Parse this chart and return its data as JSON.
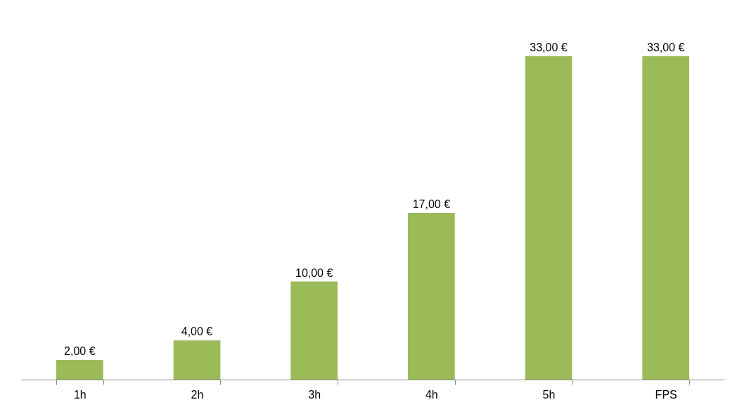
{
  "chart_data": {
    "type": "bar",
    "categories": [
      "1h",
      "2h",
      "3h",
      "4h",
      "5h",
      "FPS"
    ],
    "values": [
      2,
      4,
      10,
      17,
      33,
      33
    ],
    "value_labels": [
      "2,00 €",
      "4,00 €",
      "10,00 €",
      "17,00 €",
      "33,00 €",
      "33,00 €"
    ],
    "color": "#9bbb59",
    "grid": false,
    "tick_labels": "x"
  }
}
